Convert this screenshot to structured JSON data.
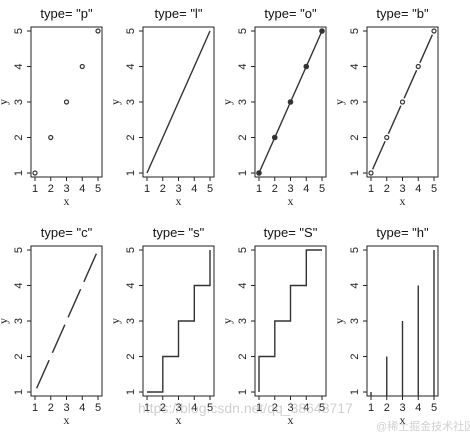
{
  "chart_data": [
    {
      "type": "scatter",
      "plot_type": "p",
      "title": "type= \"p\"",
      "xlabel": "x",
      "ylabel": "y",
      "x": [
        1,
        2,
        3,
        4,
        5
      ],
      "y": [
        1,
        2,
        3,
        4,
        5
      ],
      "xticks": [
        "1",
        "2",
        "3",
        "4",
        "5"
      ],
      "yticks": [
        "1",
        "2",
        "3",
        "4",
        "5"
      ],
      "xlim": [
        1,
        5
      ],
      "ylim": [
        1,
        5
      ]
    },
    {
      "type": "line",
      "plot_type": "l",
      "title": "type= \"l\"",
      "xlabel": "x",
      "ylabel": "y",
      "x": [
        1,
        2,
        3,
        4,
        5
      ],
      "y": [
        1,
        2,
        3,
        4,
        5
      ],
      "xticks": [
        "1",
        "2",
        "3",
        "4",
        "5"
      ],
      "yticks": [
        "1",
        "2",
        "3",
        "4",
        "5"
      ],
      "xlim": [
        1,
        5
      ],
      "ylim": [
        1,
        5
      ]
    },
    {
      "type": "line",
      "plot_type": "o",
      "title": "type= \"o\"",
      "xlabel": "x",
      "ylabel": "y",
      "x": [
        1,
        2,
        3,
        4,
        5
      ],
      "y": [
        1,
        2,
        3,
        4,
        5
      ],
      "xticks": [
        "1",
        "2",
        "3",
        "4",
        "5"
      ],
      "yticks": [
        "1",
        "2",
        "3",
        "4",
        "5"
      ],
      "xlim": [
        1,
        5
      ],
      "ylim": [
        1,
        5
      ]
    },
    {
      "type": "line",
      "plot_type": "b",
      "title": "type= \"b\"",
      "xlabel": "x",
      "ylabel": "y",
      "x": [
        1,
        2,
        3,
        4,
        5
      ],
      "y": [
        1,
        2,
        3,
        4,
        5
      ],
      "xticks": [
        "1",
        "2",
        "3",
        "4",
        "5"
      ],
      "yticks": [
        "1",
        "2",
        "3",
        "4",
        "5"
      ],
      "xlim": [
        1,
        5
      ],
      "ylim": [
        1,
        5
      ]
    },
    {
      "type": "line",
      "plot_type": "c",
      "title": "type= \"c\"",
      "xlabel": "x",
      "ylabel": "y",
      "x": [
        1,
        2,
        3,
        4,
        5
      ],
      "y": [
        1,
        2,
        3,
        4,
        5
      ],
      "xticks": [
        "1",
        "2",
        "3",
        "4",
        "5"
      ],
      "yticks": [
        "1",
        "2",
        "3",
        "4",
        "5"
      ],
      "xlim": [
        1,
        5
      ],
      "ylim": [
        1,
        5
      ]
    },
    {
      "type": "line",
      "plot_type": "s",
      "title": "type= \"s\"",
      "xlabel": "x",
      "ylabel": "y",
      "x": [
        1,
        2,
        3,
        4,
        5
      ],
      "y": [
        1,
        2,
        3,
        4,
        5
      ],
      "xticks": [
        "1",
        "2",
        "3",
        "4",
        "5"
      ],
      "yticks": [
        "1",
        "2",
        "3",
        "4",
        "5"
      ],
      "xlim": [
        1,
        5
      ],
      "ylim": [
        1,
        5
      ]
    },
    {
      "type": "line",
      "plot_type": "S",
      "title": "type= \"S\"",
      "xlabel": "x",
      "ylabel": "y",
      "x": [
        1,
        2,
        3,
        4,
        5
      ],
      "y": [
        1,
        2,
        3,
        4,
        5
      ],
      "xticks": [
        "1",
        "2",
        "3",
        "4",
        "5"
      ],
      "yticks": [
        "1",
        "2",
        "3",
        "4",
        "5"
      ],
      "xlim": [
        1,
        5
      ],
      "ylim": [
        1,
        5
      ]
    },
    {
      "type": "bar",
      "plot_type": "h",
      "title": "type= \"h\"",
      "xlabel": "x",
      "ylabel": "y",
      "x": [
        1,
        2,
        3,
        4,
        5
      ],
      "y": [
        1,
        2,
        3,
        4,
        5
      ],
      "xticks": [
        "1",
        "2",
        "3",
        "4",
        "5"
      ],
      "yticks": [
        "1",
        "2",
        "3",
        "4",
        "5"
      ],
      "xlim": [
        1,
        5
      ],
      "ylim": [
        1,
        5
      ]
    }
  ],
  "watermark": {
    "url_text": "https://blog.csdn.net/qq_38648717",
    "brand_text": "@稀土掘金技术社区"
  }
}
